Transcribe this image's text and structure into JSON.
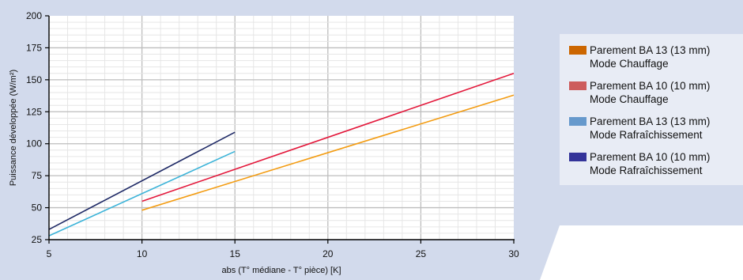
{
  "chart_data": {
    "type": "line",
    "title": "",
    "xlabel": "abs (T° médiane - T° pièce) [K]",
    "ylabel": "Puissance développée (W/m²)",
    "xlim": [
      5,
      30
    ],
    "ylim": [
      25,
      200
    ],
    "x_ticks": [
      "5",
      "10",
      "15",
      "20",
      "25",
      "30"
    ],
    "y_ticks": [
      "25",
      "50",
      "75",
      "100",
      "125",
      "150",
      "175",
      "200"
    ],
    "grid": true,
    "legend_position": "right",
    "series": [
      {
        "name_lines": [
          "Parement BA 13 (13 mm)",
          "Mode Chauffage"
        ],
        "color": "#F39C12",
        "swatch": "#CC6600",
        "points": [
          [
            10,
            48
          ],
          [
            30,
            138
          ]
        ]
      },
      {
        "name_lines": [
          "Parement BA 10 (10 mm)",
          "Mode Chauffage"
        ],
        "color": "#E3173A",
        "swatch": "#CD5C5C",
        "points": [
          [
            10,
            55
          ],
          [
            30,
            155
          ]
        ]
      },
      {
        "name_lines": [
          "Parement BA 13 (13 mm)",
          "Mode Rafraîchissement"
        ],
        "color": "#3BB3D8",
        "swatch": "#6699CC",
        "points": [
          [
            5,
            28
          ],
          [
            15,
            94
          ]
        ]
      },
      {
        "name_lines": [
          "Parement BA 10 (10 mm)",
          "Mode Rafraîchissement"
        ],
        "color": "#1F2A66",
        "swatch": "#333399",
        "points": [
          [
            5,
            33
          ],
          [
            15,
            109
          ]
        ]
      }
    ]
  },
  "colors": {
    "background": "#D2DAEC",
    "plot_background": "#FFFFFF",
    "legend_background": "#E8ECF5",
    "major_grid": "#BDBDBD",
    "minor_grid": "#E6E6E6"
  }
}
